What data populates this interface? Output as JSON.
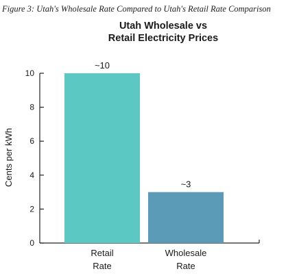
{
  "figure_caption": "Figure 3: Utah's Wholesale Rate Compared to Utah's Retail Rate Comparison",
  "chart_data": {
    "type": "bar",
    "title_lines": [
      "Utah Wholesale vs",
      "Retail Electricity Prices"
    ],
    "categories": [
      [
        "Retail",
        "Rate"
      ],
      [
        "Wholesale",
        "Rate"
      ]
    ],
    "values": [
      10,
      3
    ],
    "data_labels": [
      "~10",
      "~3"
    ],
    "colors": [
      "#5bc8c4",
      "#5b9bb8"
    ],
    "ylabel": "Cents per kWh",
    "ylim": [
      0,
      10
    ],
    "yticks": [
      0,
      2,
      4,
      6,
      8,
      10
    ],
    "grid": false
  }
}
